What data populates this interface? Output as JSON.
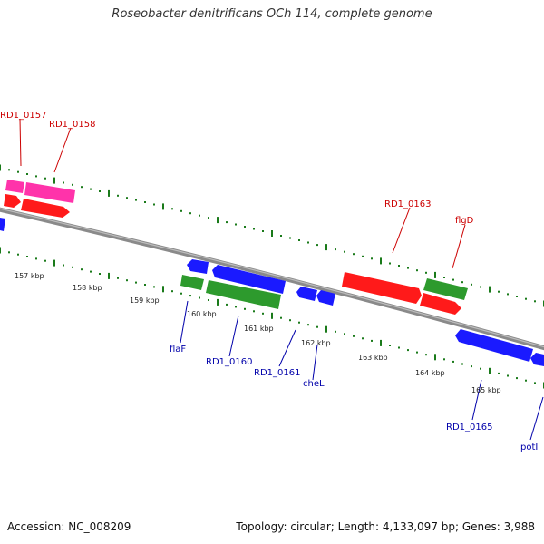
{
  "title": "Roseobacter denitrificans OCh 114, complete genome",
  "footer": {
    "accession": "Accession: NC_008209",
    "topology": "Topology: circular; Length: 4,133,097 bp; Genes: 3,988"
  },
  "colors": {
    "backbone": "#8a8a8a",
    "tick": "#1a7a1a",
    "label_forward": "#cc0000",
    "label_reverse": "#0000aa",
    "cds_red": "#ff1a1a",
    "cds_pink": "#ff33aa",
    "cds_green": "#2d9a2d",
    "cds_blue": "#1a1aff"
  },
  "kbp_labels": [
    "157 kbp",
    "158 kbp",
    "159 kbp",
    "160 kbp",
    "161 kbp",
    "162 kbp",
    "163 kbp",
    "164 kbp",
    "165 kbp"
  ],
  "forward_labels": [
    "RD1_0157",
    "RD1_0158",
    "RD1_0163",
    "flgD"
  ],
  "reverse_labels": [
    "flaF",
    "RD1_0160",
    "RD1_0161",
    "cheL",
    "RD1_0165",
    "potI"
  ]
}
